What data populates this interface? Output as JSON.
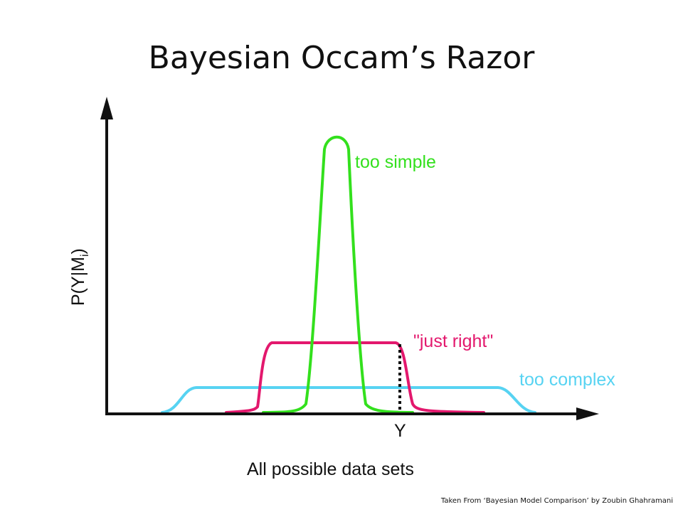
{
  "title": "Bayesian Occam’s Razor",
  "caption": "Taken From ‘Bayesian Model Comparison’ by Zoubin Ghahramani",
  "diagram": {
    "y_axis_label": "P(Y|M",
    "y_axis_label_sub": "i",
    "y_axis_label_close": ")",
    "x_axis_label": "All possible data sets",
    "x_marker_label": "Y",
    "curves": [
      {
        "key": "simple",
        "label": "too simple",
        "color": "#33e01d"
      },
      {
        "key": "right",
        "label": "\"just right\"",
        "color": "#e3186d"
      },
      {
        "key": "complex",
        "label": "too complex",
        "color": "#57d3f2"
      }
    ],
    "axis_color": "#111111",
    "marker_color": "#111111"
  }
}
